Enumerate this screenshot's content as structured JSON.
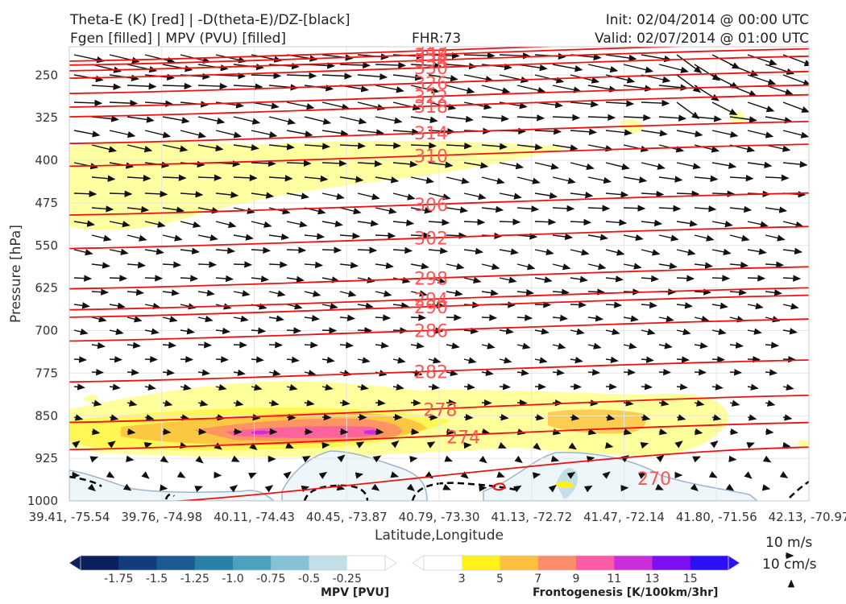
{
  "header": {
    "title_left_1": "Theta-E (K) [red] | -D(theta-E)/DZ-[black]",
    "title_left_2": "Fgen [filled] | MPV (PVU) [filled]",
    "fhr": "FHR:73",
    "init": "Init: 02/04/2014 @ 00:00 UTC",
    "valid": "Valid: 02/07/2014 @ 01:00 UTC"
  },
  "wind_key": {
    "m_s": "10 m/s",
    "cm_s": "10 cm/s"
  },
  "colors": {
    "theta_e": "#ee1111",
    "theta_e_label": "#ff5555",
    "vectors": "#111111",
    "axis_text": "#333333"
  },
  "chart_data": {
    "type": "cross-section",
    "xlabel": "Latitude,Longitude",
    "ylabel": "Pressure [hPa]",
    "x_ticks": [
      "39.41, -75.54",
      "39.76, -74.98",
      "40.11, -74.43",
      "40.45, -73.87",
      "40.79, -73.30",
      "41.13, -72.72",
      "41.47, -72.14",
      "41.80, -71.56",
      "42.13, -70.97"
    ],
    "y_ticks": [
      250,
      325,
      400,
      475,
      550,
      625,
      700,
      775,
      850,
      925,
      1000
    ],
    "ylim": [
      1000,
      200
    ],
    "y_scale": "linear-inverted",
    "theta_e_labels": [
      {
        "value": "342",
        "p": 207
      },
      {
        "value": "338",
        "p": 214
      },
      {
        "value": "334",
        "p": 224
      },
      {
        "value": "330",
        "p": 237
      },
      {
        "value": "326",
        "p": 264
      },
      {
        "value": "322",
        "p": 288
      },
      {
        "value": "318",
        "p": 305
      },
      {
        "value": "314",
        "p": 352
      },
      {
        "value": "310",
        "p": 392
      },
      {
        "value": "306",
        "p": 478
      },
      {
        "value": "302",
        "p": 537
      },
      {
        "value": "298",
        "p": 608
      },
      {
        "value": "294",
        "p": 645
      },
      {
        "value": "290",
        "p": 658
      },
      {
        "value": "286",
        "p": 700
      },
      {
        "value": "282",
        "p": 772
      },
      {
        "value": "278",
        "p": 839
      },
      {
        "value": "274",
        "p": 887
      },
      {
        "value": "270",
        "p": 960
      }
    ],
    "mpv_colorbar": {
      "label": "MPV [PVU]",
      "ticks": [
        "-1.75",
        "-1.5",
        "-1.25",
        "-1.0",
        "-0.75",
        "-0.5",
        "-0.25"
      ],
      "colors": [
        "#0b1f5e",
        "#123d7c",
        "#1a5c92",
        "#2b7fa6",
        "#4da0c0",
        "#86c2d6",
        "#c2dfe8",
        "#ffffff"
      ]
    },
    "fgen_colorbar": {
      "label": "Frontogenesis [K/100km/3hr]",
      "ticks": [
        "3",
        "5",
        "7",
        "9",
        "11",
        "13",
        "15"
      ],
      "colors": [
        "#ffffff",
        "#fff21a",
        "#fdc03e",
        "#fd8c6a",
        "#fc59a6",
        "#cc2ddb",
        "#7d0ff5",
        "#2b0ff5"
      ]
    }
  }
}
